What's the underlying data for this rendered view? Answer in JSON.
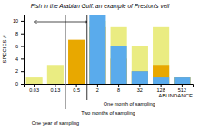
{
  "chart_data": {
    "type": "bar",
    "title": "Fish in the Arabian Gulf: an example of Preston's veil",
    "x_label": "ABUNDANCE",
    "y_label": "SPECIES #",
    "categories": [
      "0.03",
      "0.13",
      "0.5",
      "2",
      "8",
      "32",
      "128",
      "512"
    ],
    "series": [
      {
        "color": "#eaec82",
        "values": [
          1,
          3,
          6,
          10,
          9,
          6,
          9,
          1
        ]
      },
      {
        "color": "#e8a800",
        "values": [
          0,
          0,
          7,
          9,
          4,
          2,
          3,
          1
        ]
      },
      {
        "color": "#5aabec",
        "values": [
          0,
          0,
          0,
          11,
          6,
          2,
          1,
          1
        ]
      }
    ],
    "ylim": [
      0,
      11
    ],
    "yticks": [
      0,
      2,
      4,
      6,
      8,
      10
    ],
    "annotations": [
      "One month of sampling",
      "Two months of sampling",
      "One year of sampling"
    ]
  }
}
